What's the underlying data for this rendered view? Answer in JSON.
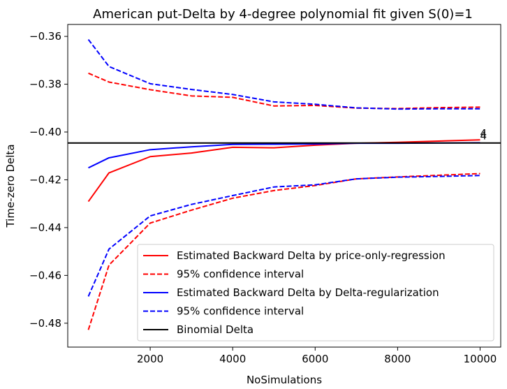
{
  "chart_data": {
    "type": "line",
    "title": "American put-Delta by 4-degree polynomial fit given S(0)=1",
    "xlabel": "NoSimulations",
    "ylabel": "Time-zero Delta",
    "xlim": [
      0,
      10500
    ],
    "ylim": [
      -0.49,
      -0.355
    ],
    "xticks": [
      2000,
      4000,
      6000,
      8000,
      10000
    ],
    "yticks": [
      -0.36,
      -0.38,
      -0.4,
      -0.42,
      -0.44,
      -0.46,
      -0.48
    ],
    "ytick_labels": [
      "−0.36",
      "−0.38",
      "−0.40",
      "−0.42",
      "−0.44",
      "−0.46",
      "−0.48"
    ],
    "grid": false,
    "legend_position": "lower-right",
    "series": [
      {
        "name": "Estimated Backward Delta by price-only-regression",
        "color": "#ff0000",
        "style": "solid",
        "x": [
          500,
          1000,
          2000,
          3000,
          4000,
          5000,
          6000,
          7000,
          8000,
          9000,
          10000
        ],
        "y": [
          -0.4291,
          -0.4171,
          -0.4103,
          -0.4088,
          -0.4064,
          -0.4066,
          -0.4055,
          -0.4047,
          -0.4043,
          -0.4038,
          -0.4033
        ]
      },
      {
        "name": "95% confidence interval",
        "color": "#ff0000",
        "style": "dashed",
        "x": [
          500,
          1000,
          2000,
          3000,
          4000,
          5000,
          6000,
          7000,
          8000,
          9000,
          10000
        ],
        "y": [
          -0.3754,
          -0.3791,
          -0.3823,
          -0.3849,
          -0.3855,
          -0.3891,
          -0.3889,
          -0.39,
          -0.3902,
          -0.3898,
          -0.3896
        ]
      },
      {
        "name": "",
        "color": "#ff0000",
        "style": "dashed",
        "x": [
          500,
          1000,
          2000,
          3000,
          4000,
          5000,
          6000,
          7000,
          8000,
          9000,
          10000
        ],
        "y": [
          -0.4828,
          -0.4557,
          -0.4381,
          -0.4327,
          -0.4277,
          -0.4245,
          -0.4224,
          -0.4196,
          -0.4188,
          -0.4181,
          -0.4174
        ]
      },
      {
        "name": "Estimated Backward Delta by Delta-regularization",
        "color": "#0000ff",
        "style": "solid",
        "x": [
          500,
          1000,
          2000,
          3000,
          4000,
          5000,
          6000,
          7000,
          8000,
          9000,
          10000
        ],
        "y": [
          -0.415,
          -0.4108,
          -0.4074,
          -0.4062,
          -0.4052,
          -0.4051,
          -0.405,
          -0.4047,
          -0.4047,
          -0.4046,
          -0.4045
        ]
      },
      {
        "name": "95% confidence interval",
        "color": "#0000ff",
        "style": "dashed",
        "x": [
          500,
          1000,
          2000,
          3000,
          4000,
          5000,
          6000,
          7000,
          8000,
          9000,
          10000
        ],
        "y": [
          -0.3613,
          -0.3726,
          -0.3798,
          -0.3822,
          -0.3843,
          -0.3874,
          -0.3884,
          -0.3899,
          -0.3904,
          -0.3903,
          -0.3903
        ]
      },
      {
        "name": "",
        "color": "#0000ff",
        "style": "dashed",
        "x": [
          500,
          1000,
          2000,
          3000,
          4000,
          5000,
          6000,
          7000,
          8000,
          9000,
          10000
        ],
        "y": [
          -0.4688,
          -0.449,
          -0.4351,
          -0.4303,
          -0.4266,
          -0.423,
          -0.4221,
          -0.4196,
          -0.4189,
          -0.4186,
          -0.4182
        ]
      }
    ],
    "reference_line": {
      "name": "Binomial Delta",
      "color": "#000000",
      "y": -0.4046
    },
    "annotations": [
      {
        "text": "4",
        "color": "#ff0000",
        "x": 10000,
        "y": -0.4015
      },
      {
        "text": "4",
        "color": "#0000ff",
        "x": 10000,
        "y": -0.4025
      }
    ],
    "legend": [
      {
        "label": "Estimated Backward Delta by price-only-regression",
        "color": "#ff0000",
        "style": "solid"
      },
      {
        "label": "95% confidence interval",
        "color": "#ff0000",
        "style": "dashed"
      },
      {
        "label": "Estimated Backward Delta by Delta-regularization",
        "color": "#0000ff",
        "style": "solid"
      },
      {
        "label": "95% confidence interval",
        "color": "#0000ff",
        "style": "dashed"
      },
      {
        "label": "Binomial Delta",
        "color": "#000000",
        "style": "solid"
      }
    ]
  }
}
